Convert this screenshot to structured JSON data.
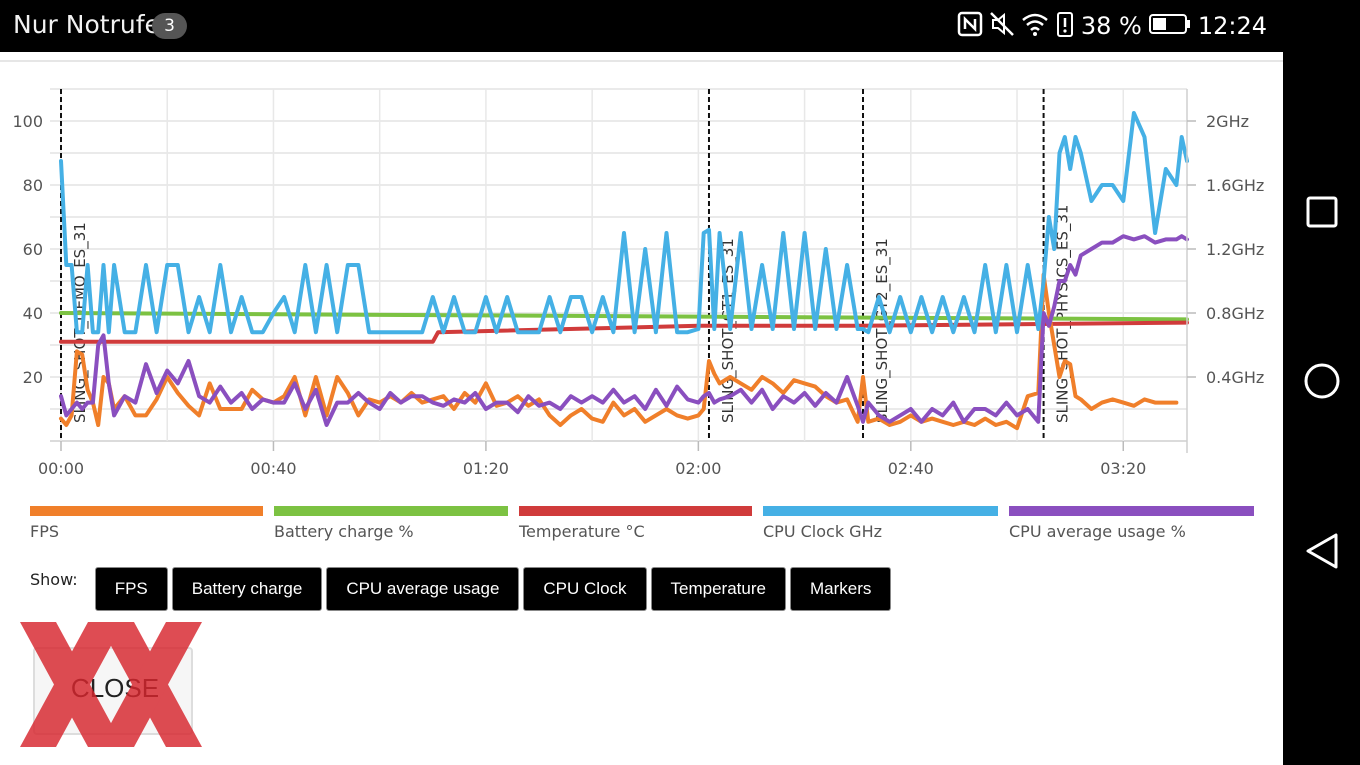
{
  "status_bar": {
    "title": "Nur Notrufe",
    "badge": "3",
    "battery": "38 %",
    "time": "12:24",
    "icons": [
      "nfc-icon",
      "mute-icon",
      "wifi-icon",
      "battery-alert-icon",
      "battery-icon"
    ]
  },
  "nav_bar": {
    "buttons": [
      "recent-apps-icon",
      "home-icon",
      "back-icon"
    ]
  },
  "chart_data": {
    "type": "line",
    "x_ticks": [
      "00:00",
      "00:40",
      "01:20",
      "02:00",
      "02:40",
      "03:20"
    ],
    "y_left_ticks": [
      "20",
      "40",
      "60",
      "80",
      "100"
    ],
    "y_right_ticks": [
      "0.4GHz",
      "0.8GHz",
      "1.2GHz",
      "1.6GHz",
      "2GHz"
    ],
    "xlim_seconds": [
      0,
      212
    ],
    "ylim": [
      0,
      110
    ],
    "ylim_right_ghz": [
      0,
      2.2
    ],
    "grid": true,
    "legend_position": "bottom",
    "markers": [
      {
        "label": "SLING_SHOT_DEMO_ES_31",
        "x_seconds": 0
      },
      {
        "label": "SLING_SHOT_GT1_ES_31",
        "x_seconds": 122
      },
      {
        "label": "SLING_SHOT_GT2_ES_31",
        "x_seconds": 151
      },
      {
        "label": "SLING_SHOT_PHYSICS_ES_31",
        "x_seconds": 185
      }
    ],
    "series": [
      {
        "name": "FPS",
        "color": "#f07f2a",
        "axis": "left",
        "x_seconds": [
          0,
          1,
          2,
          3,
          4,
          5,
          6,
          7,
          8,
          9,
          10,
          12,
          14,
          16,
          18,
          20,
          22,
          24,
          26,
          28,
          30,
          32,
          34,
          36,
          38,
          40,
          42,
          44,
          46,
          48,
          50,
          52,
          54,
          56,
          58,
          60,
          62,
          64,
          66,
          68,
          70,
          72,
          74,
          76,
          78,
          80,
          82,
          84,
          86,
          88,
          90,
          92,
          94,
          96,
          98,
          100,
          102,
          104,
          106,
          108,
          110,
          112,
          114,
          116,
          118,
          120,
          121,
          122,
          123,
          124,
          126,
          128,
          130,
          132,
          134,
          136,
          138,
          140,
          142,
          144,
          146,
          148,
          150,
          151,
          152,
          154,
          156,
          158,
          160,
          162,
          164,
          166,
          168,
          170,
          172,
          174,
          176,
          178,
          180,
          182,
          184,
          185,
          186,
          187,
          188,
          189,
          190,
          191,
          192,
          194,
          196,
          198,
          200,
          202,
          204,
          206,
          208,
          210
        ],
        "values": [
          7,
          5,
          8,
          28,
          27,
          16,
          12,
          5,
          20,
          18,
          10,
          14,
          8,
          8,
          13,
          20,
          15,
          11,
          8,
          18,
          10,
          10,
          10,
          16,
          13,
          12,
          14,
          20,
          8,
          20,
          8,
          20,
          15,
          8,
          13,
          12,
          14,
          12,
          15,
          12,
          13,
          14,
          10,
          15,
          12,
          18,
          11,
          12,
          14,
          11,
          13,
          8,
          5,
          8,
          10,
          7,
          6,
          12,
          8,
          10,
          6,
          8,
          10,
          8,
          7,
          8,
          10,
          25,
          21,
          18,
          20,
          18,
          16,
          20,
          18,
          15,
          19,
          18,
          17,
          14,
          12,
          13,
          6,
          20,
          6,
          7,
          5,
          6,
          8,
          6,
          7,
          6,
          5,
          6,
          5,
          7,
          5,
          6,
          4,
          14,
          15,
          52,
          40,
          30,
          20,
          25,
          24,
          14,
          13,
          10,
          12,
          13,
          12,
          11,
          13,
          12,
          12,
          12
        ]
      },
      {
        "name": "Battery charge %",
        "color": "#7cc242",
        "axis": "left",
        "x_seconds": [
          0,
          212
        ],
        "values": [
          40,
          38
        ]
      },
      {
        "name": "Temperature °C",
        "color": "#d03b3b",
        "axis": "left",
        "x_seconds": [
          0,
          70,
          71,
          120,
          150,
          212
        ],
        "values": [
          31,
          31,
          34,
          36,
          36,
          37
        ]
      },
      {
        "name": "CPU Clock GHz",
        "color": "#45b0e5",
        "axis": "right",
        "x_seconds": [
          0,
          1,
          2,
          3,
          4,
          5,
          6,
          7,
          8,
          9,
          10,
          12,
          14,
          16,
          18,
          20,
          22,
          24,
          26,
          28,
          30,
          32,
          34,
          36,
          38,
          40,
          42,
          44,
          46,
          48,
          50,
          52,
          54,
          56,
          58,
          60,
          62,
          64,
          66,
          68,
          70,
          72,
          74,
          76,
          78,
          80,
          82,
          84,
          86,
          88,
          90,
          92,
          94,
          96,
          98,
          100,
          102,
          104,
          106,
          108,
          110,
          112,
          114,
          116,
          118,
          120,
          121,
          122,
          123,
          124,
          126,
          128,
          130,
          132,
          134,
          136,
          138,
          140,
          142,
          144,
          146,
          148,
          150,
          151,
          152,
          154,
          156,
          158,
          160,
          162,
          164,
          166,
          168,
          170,
          172,
          174,
          176,
          178,
          180,
          182,
          184,
          185,
          186,
          187,
          188,
          189,
          190,
          191,
          192,
          194,
          196,
          198,
          200,
          202,
          204,
          206,
          208,
          210,
          211,
          212
        ],
        "values": [
          1.75,
          1.1,
          1.1,
          0.68,
          0.68,
          1.1,
          0.68,
          0.68,
          1.1,
          0.68,
          1.1,
          0.68,
          0.68,
          1.1,
          0.68,
          1.1,
          1.1,
          0.68,
          0.9,
          0.68,
          1.1,
          0.68,
          0.9,
          0.68,
          0.68,
          0.8,
          0.9,
          0.68,
          1.1,
          0.68,
          1.1,
          0.68,
          1.1,
          1.1,
          0.68,
          0.68,
          0.68,
          0.68,
          0.68,
          0.68,
          0.9,
          0.68,
          0.9,
          0.68,
          0.68,
          0.9,
          0.68,
          0.9,
          0.68,
          0.68,
          0.68,
          0.9,
          0.68,
          0.9,
          0.9,
          0.68,
          0.9,
          0.68,
          1.3,
          0.68,
          1.2,
          0.68,
          1.3,
          0.68,
          0.68,
          0.7,
          1.3,
          1.32,
          0.7,
          1.3,
          0.7,
          1.3,
          0.7,
          1.1,
          0.7,
          1.3,
          0.7,
          1.3,
          0.7,
          1.2,
          0.7,
          1.1,
          0.7,
          0.7,
          0.68,
          0.9,
          0.68,
          0.9,
          0.68,
          0.9,
          0.68,
          0.9,
          0.68,
          0.9,
          0.68,
          1.1,
          0.68,
          1.1,
          0.68,
          1.1,
          0.7,
          1.0,
          1.4,
          1.2,
          1.8,
          1.9,
          1.7,
          1.9,
          1.8,
          1.5,
          1.6,
          1.6,
          1.5,
          2.05,
          1.9,
          1.3,
          1.7,
          1.6,
          1.9,
          1.75
        ]
      },
      {
        "name": "CPU average usage %",
        "color": "#8a4fbf",
        "axis": "left",
        "x_seconds": [
          0,
          1,
          2,
          3,
          4,
          5,
          6,
          7,
          8,
          9,
          10,
          12,
          14,
          16,
          18,
          20,
          22,
          24,
          26,
          28,
          30,
          32,
          34,
          36,
          38,
          40,
          42,
          44,
          46,
          48,
          50,
          52,
          54,
          56,
          58,
          60,
          62,
          64,
          66,
          68,
          70,
          72,
          74,
          76,
          78,
          80,
          82,
          84,
          86,
          88,
          90,
          92,
          94,
          96,
          98,
          100,
          102,
          104,
          106,
          108,
          110,
          112,
          114,
          116,
          118,
          120,
          121,
          122,
          123,
          124,
          126,
          128,
          130,
          132,
          134,
          136,
          138,
          140,
          142,
          144,
          146,
          148,
          150,
          151,
          152,
          154,
          156,
          158,
          160,
          162,
          164,
          166,
          168,
          170,
          172,
          174,
          176,
          178,
          180,
          182,
          184,
          185,
          186,
          187,
          188,
          189,
          190,
          191,
          192,
          194,
          196,
          198,
          200,
          202,
          204,
          206,
          208,
          210,
          211,
          212
        ],
        "values": [
          14,
          8,
          10,
          12,
          10,
          12,
          12,
          30,
          33,
          18,
          8,
          14,
          12,
          24,
          15,
          22,
          18,
          25,
          14,
          12,
          17,
          12,
          15,
          10,
          13,
          12,
          12,
          18,
          10,
          16,
          5,
          12,
          12,
          15,
          12,
          10,
          15,
          12,
          14,
          14,
          12,
          11,
          13,
          12,
          15,
          10,
          12,
          12,
          9,
          14,
          11,
          12,
          10,
          14,
          12,
          14,
          12,
          16,
          12,
          14,
          10,
          16,
          11,
          17,
          13,
          12,
          14,
          15,
          12,
          13,
          14,
          16,
          12,
          16,
          10,
          14,
          12,
          15,
          11,
          15,
          12,
          20,
          11,
          6,
          12,
          8,
          6,
          8,
          10,
          6,
          10,
          8,
          12,
          6,
          10,
          10,
          8,
          12,
          8,
          10,
          6,
          40,
          36,
          42,
          50,
          50,
          55,
          52,
          58,
          60,
          62,
          62,
          64,
          63,
          64,
          62,
          63,
          63,
          64,
          63
        ]
      }
    ],
    "legend": [
      "FPS",
      "Battery charge %",
      "Temperature °C",
      "CPU Clock GHz",
      "CPU average usage %"
    ]
  },
  "controls": {
    "show_label": "Show:",
    "toggles": [
      "FPS",
      "Battery charge",
      "CPU average usage",
      "CPU Clock",
      "Temperature",
      "Markers"
    ],
    "close_label": "CLOSE"
  }
}
